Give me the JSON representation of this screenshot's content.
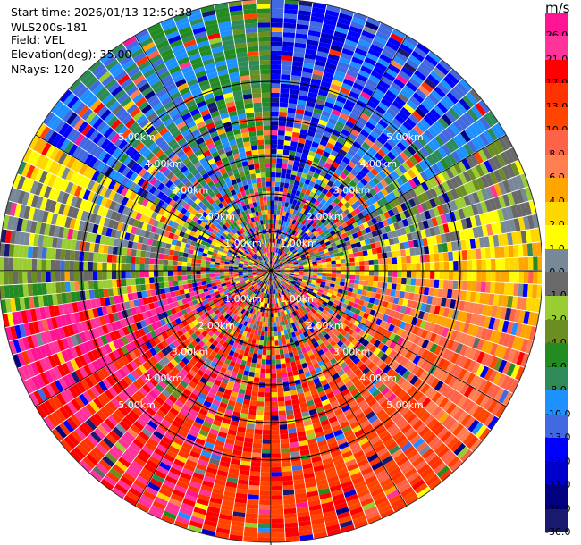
{
  "header": {
    "start_time": "Start time: 2026/01/13 12:50:38",
    "instrument": "WLS200s-181",
    "field": "Field: VEL",
    "elevation": "Elevation(deg): 35.00",
    "nrays": "NRays: 120"
  },
  "chart_data": {
    "type": "polar-ppi",
    "field": "VEL",
    "units": "m/s",
    "nrays": 120,
    "elevation_deg": 35.0,
    "range_rings_km": [
      1,
      2,
      3,
      4,
      5
    ],
    "ring_labels": [
      "1.00km",
      "2.00km",
      "3.00km",
      "4.00km",
      "5.00km"
    ],
    "colorbar": {
      "label": "m/s",
      "ticks": [
        "26.0",
        "21.0",
        "17.0",
        "13.0",
        "10.0",
        "8.0",
        "6.0",
        "4.0",
        "2.0",
        "1.0",
        "0.0",
        "-1.0",
        "-2.0",
        "-4.0",
        "-6.0",
        "-8.0",
        "-10.0",
        "-13.0",
        "-17.0",
        "-21.0",
        "-26.0",
        "-30.0"
      ],
      "colors": [
        "#ff1493",
        "#ff3399",
        "#ff0000",
        "#ff3300",
        "#ff4500",
        "#ff6347",
        "#ff7f50",
        "#ffa500",
        "#ffd700",
        "#ffff00",
        "#778899",
        "#696969",
        "#9acd32",
        "#6b8e23",
        "#228b22",
        "#2e8b57",
        "#1e90ff",
        "#4169e1",
        "#0000ff",
        "#0000cd",
        "#000080",
        "#191970"
      ]
    },
    "sectors": [
      {
        "from_deg": 0,
        "to_deg": 60,
        "dominant_range_m_s": [
          -17,
          -10
        ],
        "description": "north sector dominated by blue (approaching)"
      },
      {
        "from_deg": 30,
        "to_deg": 100,
        "dominant_range_m_s": [
          -8,
          4
        ],
        "description": "east-north-east green and yellow"
      },
      {
        "from_deg": 100,
        "to_deg": 260,
        "dominant_range_m_s": [
          6,
          21
        ],
        "description": "south sector dominated by orange and red (receding)"
      },
      {
        "from_deg": 260,
        "to_deg": 300,
        "dominant_range_m_s": [
          -4,
          2
        ],
        "description": "west sector green / olive / yellow"
      },
      {
        "from_deg": 300,
        "to_deg": 360,
        "dominant_range_m_s": [
          -13,
          -6
        ],
        "description": "north-west blue and green"
      }
    ]
  }
}
